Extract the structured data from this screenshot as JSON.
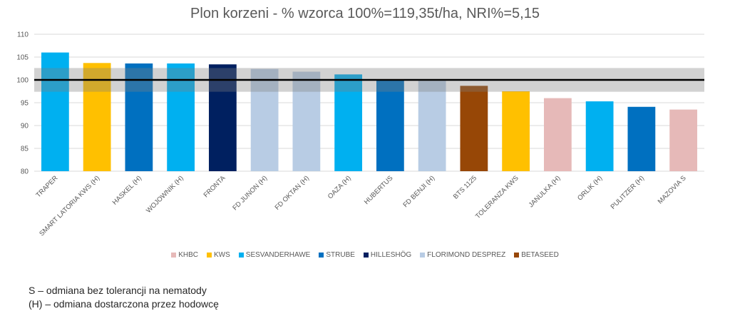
{
  "chart_data": {
    "type": "bar",
    "title": "Plon korzeni - % wzorca 100%=119,35t/ha, NRI%=5,15",
    "xlabel": "",
    "ylabel": "",
    "ylim": [
      80,
      110
    ],
    "yticks": [
      80,
      85,
      90,
      95,
      100,
      105,
      110
    ],
    "grid": true,
    "legend_position": "bottom",
    "reference_value": 100,
    "band": [
      97.4,
      102.6
    ],
    "categories": [
      "TRAPER",
      "SMART LATORIA KWS (H)",
      "HASKEL (H)",
      "WOJOWNIK (H)",
      "FRONTA",
      "FD JUNON (H)",
      "FD OKTAN (H)",
      "OAZA (H)",
      "HUBERTUS",
      "FD BENJI (H)",
      "BTS 1125",
      "TOLERANZA KWS",
      "JANULKA (H)",
      "ORLIK (H)",
      "PULITZER (H)",
      "MAZOVIA S"
    ],
    "values": [
      106,
      103.7,
      103.6,
      103.6,
      103.4,
      102.4,
      101.8,
      101.2,
      100.1,
      99.8,
      98.7,
      97.5,
      96,
      95.3,
      94.1,
      93.5
    ],
    "bar_groups": [
      "SESVANDERHAWE",
      "KWS",
      "STRUBE",
      "SESVANDERHAWE",
      "HILLESHÖG",
      "FLORIMOND DESPREZ",
      "FLORIMOND DESPREZ",
      "SESVANDERHAWE",
      "STRUBE",
      "FLORIMOND DESPREZ",
      "BETASEED",
      "KWS",
      "KHBC",
      "SESVANDERHAWE",
      "STRUBE",
      "KHBC"
    ],
    "legend": [
      {
        "name": "KHBC",
        "color": "#e6b9b8"
      },
      {
        "name": "KWS",
        "color": "#ffc000"
      },
      {
        "name": "SESVANDERHAWE",
        "color": "#00b0f0"
      },
      {
        "name": "STRUBE",
        "color": "#0070c0"
      },
      {
        "name": "HILLESHÖG",
        "color": "#002060"
      },
      {
        "name": "FLORIMOND DESPREZ",
        "color": "#b8cce4"
      },
      {
        "name": "BETASEED",
        "color": "#974706"
      }
    ]
  },
  "footnotes": [
    "S – odmiana bez tolerancji na nematody",
    "(H) – odmiana dostarczona przez hodowcę"
  ]
}
